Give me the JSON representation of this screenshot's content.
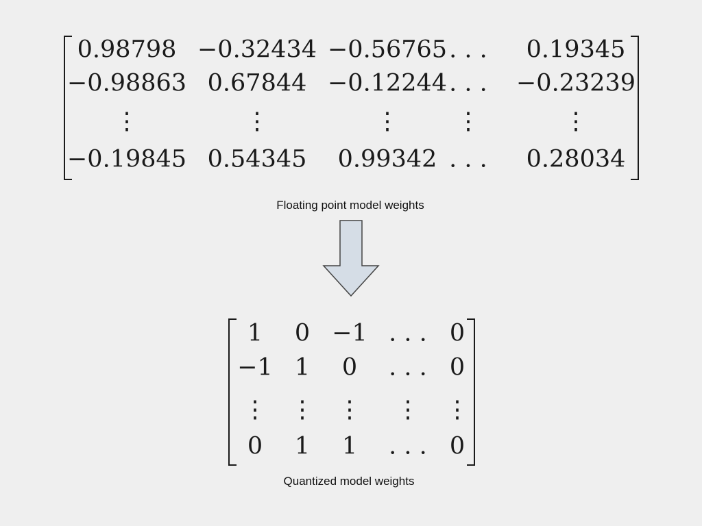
{
  "top_matrix": {
    "rows": [
      [
        "0.98798",
        "−0.32434",
        "−0.56765",
        ". . .",
        "0.19345"
      ],
      [
        "−0.98863",
        "0.67844",
        "−0.12244",
        ". . .",
        "−0.23239"
      ],
      [
        "⋮",
        "⋮",
        "⋮",
        "⋮",
        "⋮"
      ],
      [
        "−0.19845",
        "0.54345",
        "0.99342",
        ". . .",
        "0.28034"
      ]
    ],
    "caption": "Floating point model weights"
  },
  "arrow": {
    "fill": "#d5dde6",
    "stroke": "#444444"
  },
  "bottom_matrix": {
    "rows": [
      [
        "1",
        "0",
        "−1",
        ". . .",
        "0"
      ],
      [
        "−1",
        "1",
        "0",
        ". . .",
        "0"
      ],
      [
        "⋮",
        "⋮",
        "⋮",
        "⋮",
        "⋮"
      ],
      [
        "0",
        "1",
        "1",
        ". . .",
        "0"
      ]
    ],
    "caption": "Quantized model weights"
  }
}
